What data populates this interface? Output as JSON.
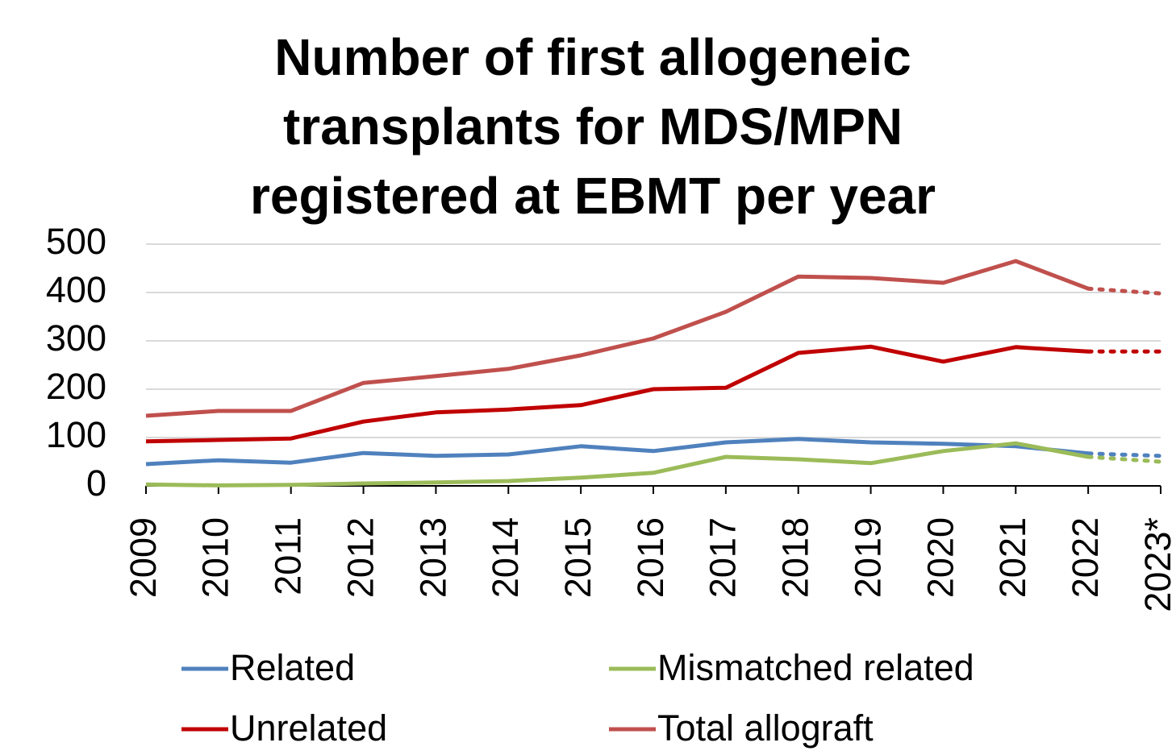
{
  "chart_data": {
    "type": "line",
    "title": "Number of first allogeneic transplants for MDS/MPN registered at EBMT per year",
    "categories": [
      "2009",
      "2010",
      "2011",
      "2012",
      "2013",
      "2014",
      "2015",
      "2016",
      "2017",
      "2018",
      "2019",
      "2020",
      "2021",
      "2022",
      "2023*"
    ],
    "series": [
      {
        "name": "Related",
        "color": "#4f81bd",
        "values": [
          45,
          53,
          48,
          68,
          62,
          65,
          82,
          72,
          90,
          97,
          90,
          87,
          82,
          67,
          62
        ]
      },
      {
        "name": "Mismatched related",
        "color": "#9bbb59",
        "values": [
          3,
          1,
          2,
          5,
          7,
          10,
          17,
          27,
          60,
          55,
          47,
          72,
          88,
          60,
          50
        ]
      },
      {
        "name": "Unrelated",
        "color": "#c00000",
        "values": [
          92,
          95,
          98,
          133,
          152,
          158,
          167,
          200,
          203,
          275,
          288,
          257,
          287,
          278,
          278
        ]
      },
      {
        "name": "Total allograft",
        "color": "#c0504d",
        "values": [
          145,
          155,
          155,
          213,
          227,
          242,
          270,
          305,
          360,
          433,
          430,
          420,
          465,
          408,
          398
        ]
      }
    ],
    "ylim": [
      0,
      500
    ],
    "yticks": [
      0,
      100,
      200,
      300,
      400,
      500
    ],
    "grid": true,
    "dotted_last_segment": true,
    "legend": "bottom"
  }
}
